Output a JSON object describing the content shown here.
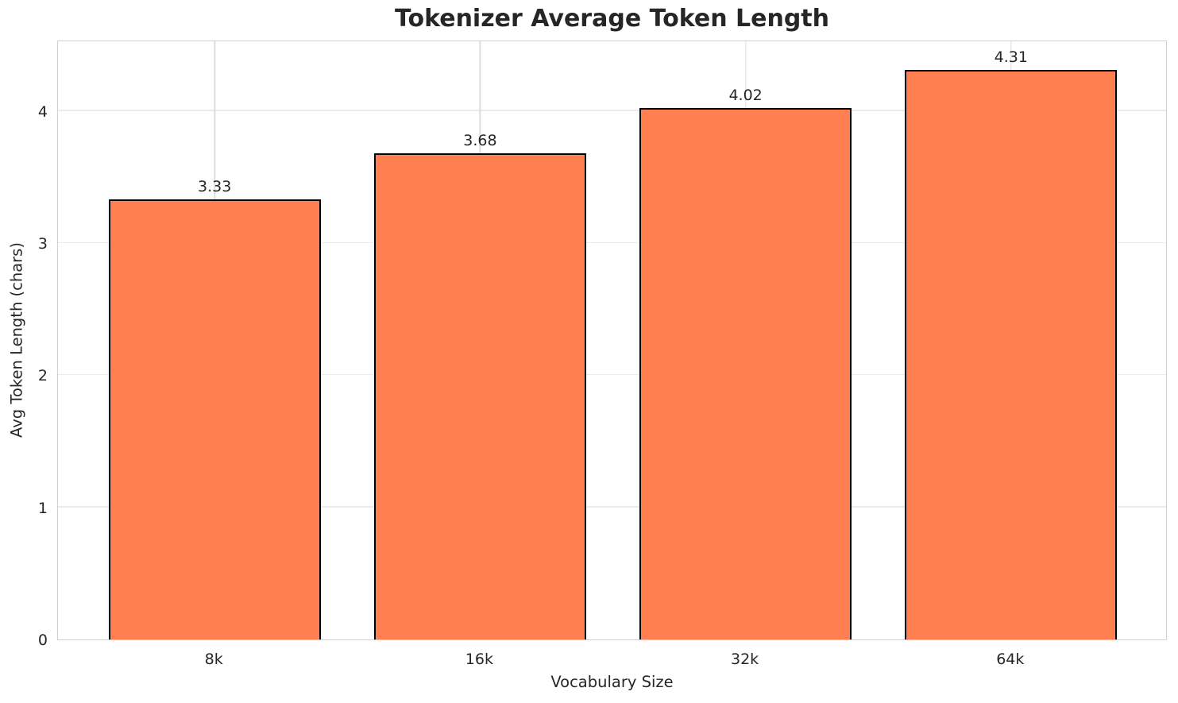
{
  "chart_data": {
    "type": "bar",
    "title": "Tokenizer Average Token Length",
    "categories": [
      "8k",
      "16k",
      "32k",
      "64k"
    ],
    "values": [
      3.33,
      3.68,
      4.02,
      4.31
    ],
    "value_labels": [
      "3.33",
      "3.68",
      "4.02",
      "4.31"
    ],
    "xlabel": "Vocabulary Size",
    "ylabel": "Avg Token Length (chars)",
    "ylim": [
      0,
      4.54
    ],
    "yticks": [
      0,
      1,
      2,
      3,
      4
    ],
    "grid": true,
    "legend": false,
    "colors": {
      "bar_fill": "#FF7F50",
      "bar_edge": "#000000",
      "grid_h": "#ebebeb",
      "grid_v": "#dddddd",
      "spine": "#d0d0d0",
      "text": "#262626"
    }
  }
}
